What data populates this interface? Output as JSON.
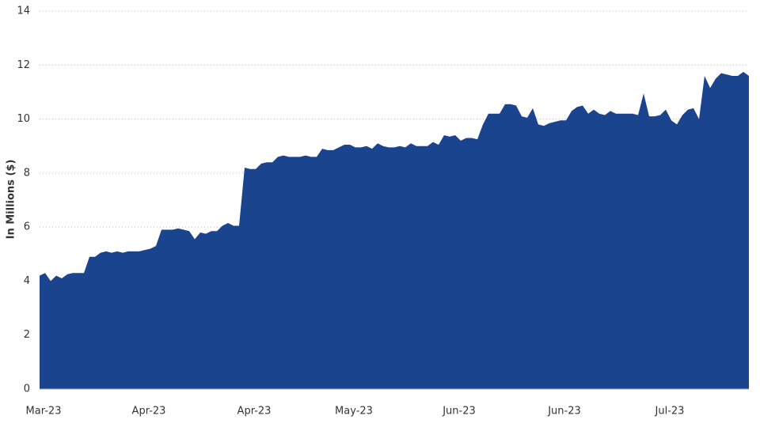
{
  "chart_data": {
    "type": "area",
    "y_label": "In Millions ($)",
    "categories": [
      "Mar-23",
      null,
      null,
      null,
      null,
      null,
      null,
      null,
      null,
      null,
      null,
      null,
      null,
      null,
      null,
      null,
      null,
      null,
      null,
      "Apr-23",
      null,
      null,
      null,
      null,
      null,
      null,
      null,
      null,
      null,
      null,
      null,
      null,
      null,
      null,
      null,
      null,
      null,
      null,
      "Apr-23",
      null,
      null,
      null,
      null,
      null,
      null,
      null,
      null,
      null,
      null,
      null,
      null,
      null,
      null,
      null,
      null,
      null,
      "May-23",
      null,
      null,
      null,
      null,
      null,
      null,
      null,
      null,
      null,
      null,
      null,
      null,
      null,
      null,
      null,
      null,
      null,
      null,
      "Jun-23",
      null,
      null,
      null,
      null,
      null,
      null,
      null,
      null,
      null,
      null,
      null,
      null,
      null,
      null,
      null,
      null,
      null,
      null,
      "Jun-23",
      null,
      null,
      null,
      null,
      null,
      null,
      null,
      null,
      null,
      null,
      null,
      null,
      null,
      null,
      null,
      null,
      null,
      null,
      "Jul-23",
      null,
      null,
      null,
      null,
      null,
      null,
      null,
      null,
      null,
      null,
      null,
      null,
      null,
      null,
      null
    ],
    "values": [
      4.2,
      4.3,
      4.0,
      4.2,
      4.1,
      4.25,
      4.3,
      4.3,
      4.3,
      4.9,
      4.9,
      5.05,
      5.1,
      5.05,
      5.1,
      5.05,
      5.1,
      5.1,
      5.1,
      5.15,
      5.2,
      5.3,
      5.9,
      5.9,
      5.9,
      5.95,
      5.9,
      5.85,
      5.55,
      5.8,
      5.75,
      5.85,
      5.85,
      6.05,
      6.15,
      6.05,
      6.05,
      8.2,
      8.15,
      8.15,
      8.35,
      8.4,
      8.4,
      8.6,
      8.65,
      8.6,
      8.6,
      8.6,
      8.65,
      8.6,
      8.6,
      8.9,
      8.85,
      8.85,
      8.95,
      9.05,
      9.05,
      8.95,
      8.95,
      9.0,
      8.9,
      9.1,
      9.0,
      8.95,
      8.95,
      9.0,
      8.95,
      9.1,
      9.0,
      9.0,
      9.0,
      9.15,
      9.05,
      9.4,
      9.35,
      9.4,
      9.2,
      9.3,
      9.3,
      9.25,
      9.8,
      10.2,
      10.2,
      10.2,
      10.55,
      10.55,
      10.5,
      10.1,
      10.05,
      10.4,
      9.8,
      9.75,
      9.85,
      9.9,
      9.95,
      9.95,
      10.3,
      10.45,
      10.5,
      10.2,
      10.35,
      10.2,
      10.15,
      10.3,
      10.2,
      10.2,
      10.2,
      10.2,
      10.15,
      10.95,
      10.1,
      10.1,
      10.15,
      10.35,
      9.95,
      9.8,
      10.15,
      10.35,
      10.4,
      10.0,
      11.6,
      11.15,
      11.5,
      11.7,
      11.65,
      11.6,
      11.6,
      11.75,
      11.6
    ],
    "color": "#1a458e",
    "ylim": [
      0,
      14
    ],
    "yticks": [
      0,
      2,
      4,
      6,
      8,
      10,
      12,
      14
    ],
    "grid": true
  }
}
